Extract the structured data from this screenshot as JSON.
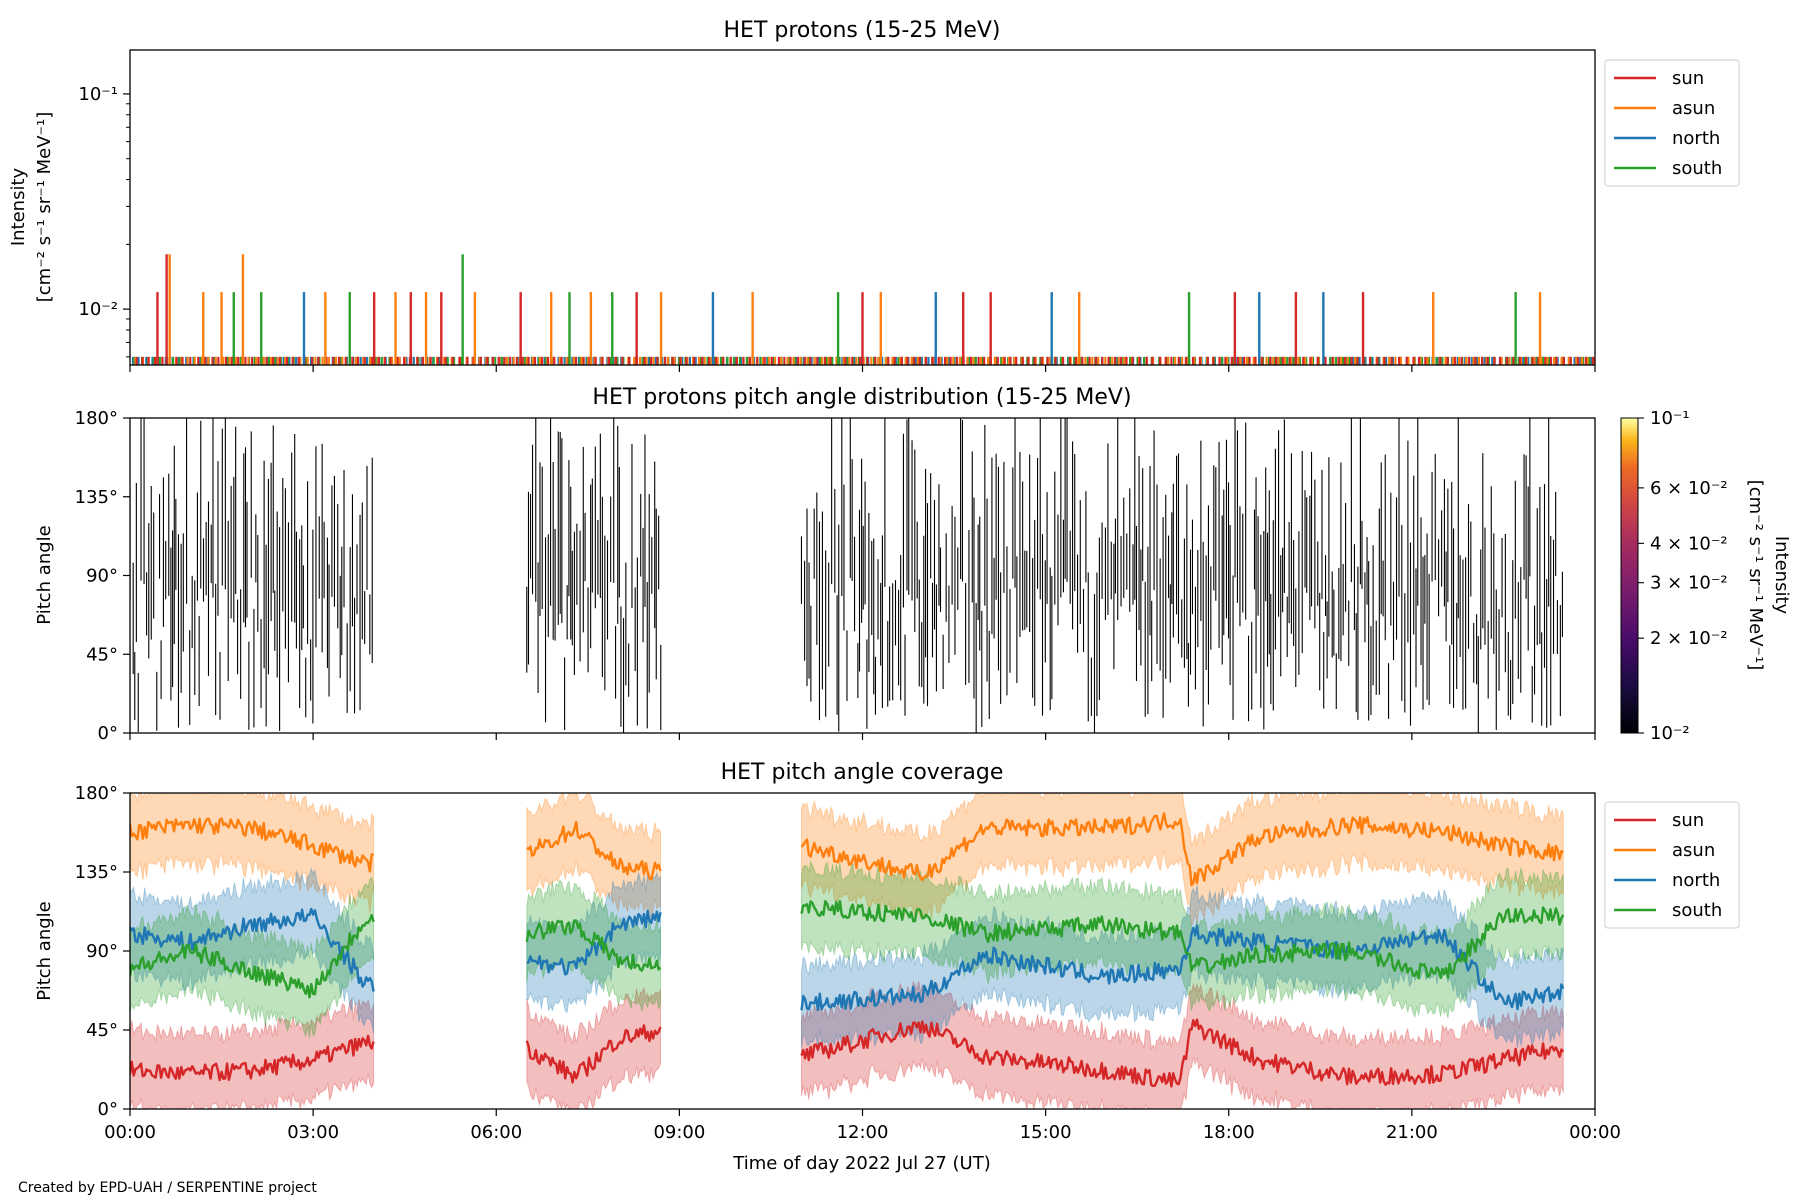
{
  "credit": "Created by EPD-UAH / SERPENTINE project",
  "colors": {
    "sun": "#d62728",
    "asun": "#ff7f0e",
    "north": "#1f77b4",
    "south": "#2ca02c"
  },
  "chart_data": [
    {
      "type": "line",
      "title": "HET protons (15-25 MeV)",
      "ylabel_line1": "Intensity",
      "ylabel_line2": "[cm⁻² s⁻¹ sr⁻¹ MeV⁻¹]",
      "yscale": "log",
      "ylim": [
        0.0055,
        0.16
      ],
      "yticks": [
        {
          "value": 0.01,
          "label": "10⁻²"
        },
        {
          "value": 0.1,
          "label": "10⁻¹"
        }
      ],
      "xlim_hours": [
        0,
        24
      ],
      "legend": "top-right",
      "series": [
        {
          "name": "sun"
        },
        {
          "name": "asun"
        },
        {
          "name": "north"
        },
        {
          "name": "south"
        }
      ],
      "baseline_value": 0.006,
      "spikes": [
        {
          "series": "sun",
          "t": 0.45,
          "value": 0.012
        },
        {
          "series": "sun",
          "t": 0.6,
          "value": 0.018
        },
        {
          "series": "asun",
          "t": 0.65,
          "value": 0.018
        },
        {
          "series": "asun",
          "t": 1.2,
          "value": 0.012
        },
        {
          "series": "asun",
          "t": 1.5,
          "value": 0.012
        },
        {
          "series": "south",
          "t": 1.7,
          "value": 0.012
        },
        {
          "series": "asun",
          "t": 1.85,
          "value": 0.018
        },
        {
          "series": "south",
          "t": 2.15,
          "value": 0.012
        },
        {
          "series": "north",
          "t": 2.85,
          "value": 0.012
        },
        {
          "series": "asun",
          "t": 3.2,
          "value": 0.012
        },
        {
          "series": "south",
          "t": 3.6,
          "value": 0.012
        },
        {
          "series": "sun",
          "t": 4.0,
          "value": 0.012
        },
        {
          "series": "asun",
          "t": 4.35,
          "value": 0.012
        },
        {
          "series": "sun",
          "t": 4.6,
          "value": 0.012
        },
        {
          "series": "asun",
          "t": 4.85,
          "value": 0.012
        },
        {
          "series": "sun",
          "t": 5.1,
          "value": 0.012
        },
        {
          "series": "south",
          "t": 5.45,
          "value": 0.018
        },
        {
          "series": "asun",
          "t": 5.65,
          "value": 0.012
        },
        {
          "series": "sun",
          "t": 6.4,
          "value": 0.012
        },
        {
          "series": "asun",
          "t": 6.9,
          "value": 0.012
        },
        {
          "series": "south",
          "t": 7.2,
          "value": 0.012
        },
        {
          "series": "asun",
          "t": 7.55,
          "value": 0.012
        },
        {
          "series": "south",
          "t": 7.9,
          "value": 0.012
        },
        {
          "series": "sun",
          "t": 8.3,
          "value": 0.012
        },
        {
          "series": "asun",
          "t": 8.7,
          "value": 0.012
        },
        {
          "series": "north",
          "t": 9.55,
          "value": 0.012
        },
        {
          "series": "asun",
          "t": 10.2,
          "value": 0.012
        },
        {
          "series": "south",
          "t": 11.6,
          "value": 0.012
        },
        {
          "series": "sun",
          "t": 12.0,
          "value": 0.012
        },
        {
          "series": "asun",
          "t": 12.3,
          "value": 0.012
        },
        {
          "series": "north",
          "t": 13.2,
          "value": 0.012
        },
        {
          "series": "sun",
          "t": 13.65,
          "value": 0.012
        },
        {
          "series": "sun",
          "t": 14.1,
          "value": 0.012
        },
        {
          "series": "north",
          "t": 15.1,
          "value": 0.012
        },
        {
          "series": "asun",
          "t": 15.55,
          "value": 0.012
        },
        {
          "series": "south",
          "t": 17.35,
          "value": 0.012
        },
        {
          "series": "sun",
          "t": 18.1,
          "value": 0.012
        },
        {
          "series": "north",
          "t": 18.5,
          "value": 0.012
        },
        {
          "series": "sun",
          "t": 19.1,
          "value": 0.012
        },
        {
          "series": "north",
          "t": 19.55,
          "value": 0.012
        },
        {
          "series": "sun",
          "t": 20.2,
          "value": 0.012
        },
        {
          "series": "asun",
          "t": 21.35,
          "value": 0.012
        },
        {
          "series": "south",
          "t": 22.7,
          "value": 0.012
        },
        {
          "series": "asun",
          "t": 23.1,
          "value": 0.012
        }
      ]
    },
    {
      "type": "heatmap",
      "title": "HET protons pitch angle distribution (15-25 MeV)",
      "ylabel": "Pitch angle",
      "ylim": [
        0,
        180
      ],
      "yticks": [
        {
          "value": 0,
          "label": "0°"
        },
        {
          "value": 45,
          "label": "45°"
        },
        {
          "value": 90,
          "label": "90°"
        },
        {
          "value": 135,
          "label": "135°"
        },
        {
          "value": 180,
          "label": "180°"
        }
      ],
      "xlim_hours": [
        0,
        24
      ],
      "colormap": "inferno",
      "colorbar": {
        "label_line1": "Intensity",
        "label_line2": "[cm⁻² s⁻¹ sr⁻¹ MeV⁻¹]",
        "scale": "log",
        "range": [
          0.01,
          0.1
        ],
        "ticks": [
          {
            "value": 0.01,
            "label": "10⁻²"
          },
          {
            "value": 0.02,
            "label": "2 × 10⁻²"
          },
          {
            "value": 0.03,
            "label": "3 × 10⁻²"
          },
          {
            "value": 0.04,
            "label": "4 × 10⁻²"
          },
          {
            "value": 0.06,
            "label": "6 × 10⁻²"
          },
          {
            "value": 0.1,
            "label": "10⁻¹"
          }
        ]
      },
      "data_intervals_hours": [
        [
          0,
          4.0
        ],
        [
          6.5,
          8.7
        ],
        [
          11.0,
          23.5
        ]
      ]
    },
    {
      "type": "line",
      "title": "HET pitch angle coverage",
      "ylabel": "Pitch angle",
      "xlabel": "Time of day 2022 Jul 27 (UT)",
      "ylim": [
        0,
        180
      ],
      "yticks": [
        {
          "value": 0,
          "label": "0°"
        },
        {
          "value": 45,
          "label": "45°"
        },
        {
          "value": 90,
          "label": "90°"
        },
        {
          "value": 135,
          "label": "135°"
        },
        {
          "value": 180,
          "label": "180°"
        }
      ],
      "xticks": [
        {
          "value": 0,
          "label": "00:00"
        },
        {
          "value": 3,
          "label": "03:00"
        },
        {
          "value": 6,
          "label": "06:00"
        },
        {
          "value": 9,
          "label": "09:00"
        },
        {
          "value": 12,
          "label": "12:00"
        },
        {
          "value": 15,
          "label": "15:00"
        },
        {
          "value": 18,
          "label": "18:00"
        },
        {
          "value": 21,
          "label": "21:00"
        },
        {
          "value": 24,
          "label": "00:00"
        }
      ],
      "legend": "top-right",
      "band_halfwidth_deg": 22,
      "data_intervals_hours": [
        [
          0,
          4.0
        ],
        [
          6.5,
          8.7
        ],
        [
          11.0,
          23.5
        ]
      ],
      "series": [
        {
          "name": "sun",
          "x": [
            0,
            1,
            2,
            3,
            3.9,
            6.5,
            7.3,
            8.0,
            8.7,
            11.0,
            13.0,
            14.0,
            16.0,
            17.2,
            17.4,
            18.5,
            20.0,
            21.5,
            22.5,
            23.5
          ],
          "y": [
            22,
            20,
            22,
            28,
            38,
            35,
            18,
            40,
            45,
            30,
            48,
            30,
            22,
            15,
            48,
            28,
            18,
            20,
            28,
            35
          ]
        },
        {
          "name": "asun",
          "x": [
            0,
            1,
            2,
            3,
            3.9,
            6.5,
            7.3,
            8.0,
            8.7,
            11.0,
            13.0,
            14.0,
            16.0,
            17.2,
            17.4,
            18.5,
            20.0,
            21.5,
            22.5,
            23.5
          ],
          "y": [
            158,
            162,
            160,
            150,
            140,
            145,
            160,
            138,
            135,
            150,
            133,
            160,
            160,
            165,
            130,
            155,
            162,
            158,
            150,
            145
          ]
        },
        {
          "name": "north",
          "x": [
            0,
            1,
            2,
            3,
            3.9,
            6.5,
            7.3,
            8.0,
            8.7,
            11.0,
            13.0,
            14.0,
            16.0,
            17.2,
            17.4,
            18.5,
            20.0,
            21.5,
            22.5,
            23.5
          ],
          "y": [
            100,
            95,
            105,
            110,
            70,
            85,
            80,
            105,
            110,
            60,
            65,
            88,
            75,
            80,
            100,
            95,
            90,
            100,
            60,
            68
          ]
        },
        {
          "name": "south",
          "x": [
            0,
            1,
            2,
            3,
            3.9,
            6.5,
            7.3,
            8.0,
            8.7,
            11.0,
            13.0,
            14.0,
            16.0,
            17.2,
            17.4,
            18.5,
            20.0,
            21.5,
            22.5,
            23.5
          ],
          "y": [
            80,
            90,
            78,
            68,
            110,
            100,
            105,
            85,
            80,
            115,
            110,
            100,
            105,
            100,
            80,
            88,
            90,
            75,
            110,
            110
          ]
        }
      ]
    }
  ]
}
